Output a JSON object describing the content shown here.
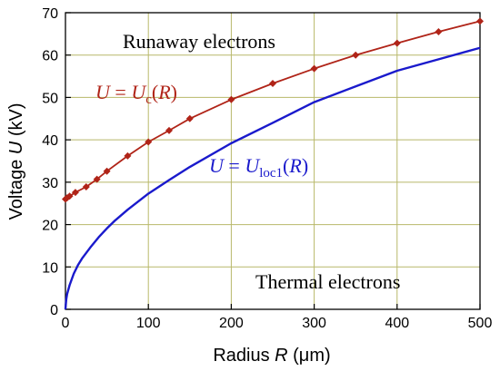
{
  "chart_data": {
    "type": "line",
    "xlabel": {
      "pre": "Radius ",
      "var": "R",
      "post": " (μm)"
    },
    "ylabel": {
      "pre": "Voltage ",
      "var": "U",
      "post": " (kV)"
    },
    "xlim": [
      0,
      500
    ],
    "ylim": [
      0,
      70
    ],
    "xticks": [
      0,
      100,
      200,
      300,
      400,
      500
    ],
    "yticks": [
      0,
      10,
      20,
      30,
      40,
      50,
      60,
      70
    ],
    "grid": true,
    "colors": {
      "grid": "#b8b86a",
      "uc": "#b02418",
      "uc_marker": "#b02418",
      "uloc": "#1a1acc"
    },
    "series": [
      {
        "key": "uc",
        "x": [
          0,
          2,
          5,
          12,
          25,
          38,
          50,
          75,
          100,
          125,
          150,
          200,
          250,
          300,
          350,
          400,
          450,
          500
        ],
        "y": [
          26,
          26.3,
          26.7,
          27.6,
          28.9,
          30.7,
          32.6,
          36.2,
          39.5,
          42.2,
          45,
          49.5,
          53.3,
          56.8,
          60,
          62.8,
          65.5,
          68
        ]
      },
      {
        "key": "uloc",
        "x": [
          0,
          0.5,
          1,
          2,
          5,
          10,
          15,
          20,
          30,
          40,
          50,
          60,
          75,
          100,
          125,
          150,
          200,
          250,
          300,
          350,
          400,
          450,
          500
        ],
        "y": [
          0,
          1.3,
          2.4,
          3.6,
          5.7,
          8.4,
          10.4,
          12,
          14.6,
          17,
          19.1,
          21,
          23.5,
          27.3,
          30.5,
          33.6,
          39.2,
          44,
          48.9,
          52.6,
          56.3,
          59,
          61.7
        ]
      }
    ],
    "annotations": {
      "runaway": "Runaway electrons",
      "thermal": "Thermal electrons",
      "uc_label": {
        "lhs": "U",
        "eq": " = ",
        "var": "U",
        "sub": "c",
        "open": "(",
        "arg": "R",
        "close": ")"
      },
      "uloc_label": {
        "lhs": "U",
        "eq": " = ",
        "var": "U",
        "sub": "loc1",
        "open": "(",
        "arg": "R",
        "close": ")"
      }
    }
  }
}
